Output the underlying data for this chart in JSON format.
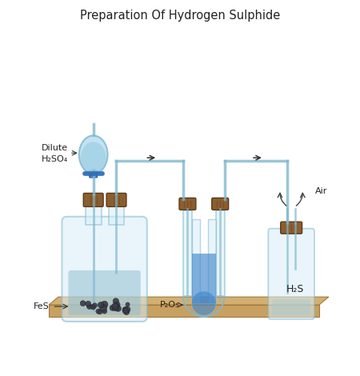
{
  "title": "Preparation Of Hydrogen Sulphide",
  "title_fontsize": 10.5,
  "bg_color": "#ffffff",
  "board_color": "#c8a060",
  "board_edge_color": "#a07840",
  "board_top_color": "#d4b070",
  "glass_color": "#d8eef8",
  "glass_edge": "#80b8cc",
  "glass_alpha": 0.55,
  "stopper_color": "#8B5E30",
  "stopper_edge": "#5a3a18",
  "liquid_color": "#90c0d0",
  "fes_color": "#3a3a48",
  "blue_crystal_color": "#4488cc",
  "arrow_color": "#333333",
  "label_color": "#222222",
  "funnel_color": "#b8ddf0",
  "tap_color": "#3377bb",
  "pipe_color": "#c0dce8",
  "pipe_edge": "#88b8cc",
  "h2s_label": "H₂S",
  "p2o5_label": "P₂O₅",
  "fes_label": "FeS",
  "dilute_label1": "Dilute",
  "dilute_label2": "H₂SO₄",
  "air_label": "Air",
  "lfs": 8.0
}
